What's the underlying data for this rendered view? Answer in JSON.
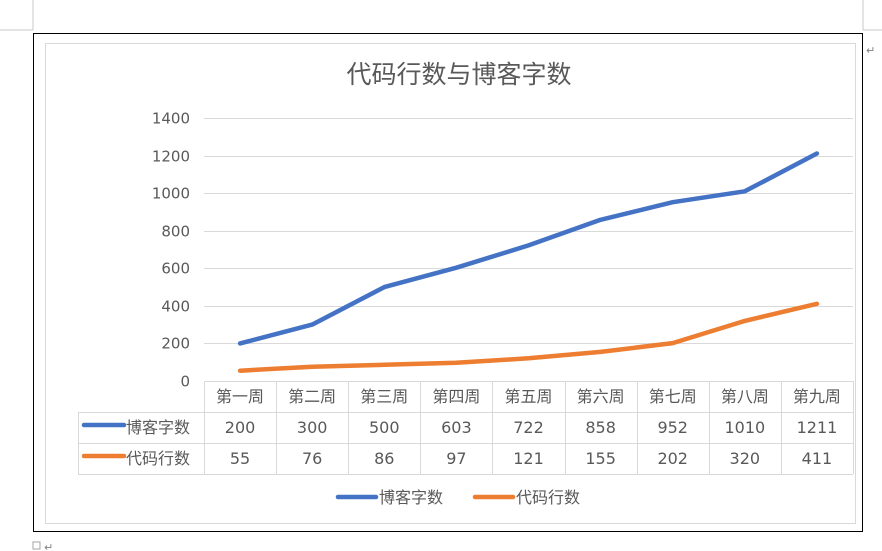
{
  "paragraph_marks": [
    "↵",
    "↵"
  ],
  "chart_data": {
    "type": "line",
    "title": "代码行数与博客字数",
    "categories": [
      "第一周",
      "第二周",
      "第三周",
      "第四周",
      "第五周",
      "第六周",
      "第七周",
      "第八周",
      "第九周"
    ],
    "series": [
      {
        "name": "博客字数",
        "color": "#4472c4",
        "values": [
          200,
          300,
          500,
          603,
          722,
          858,
          952,
          1010,
          1211
        ]
      },
      {
        "name": "代码行数",
        "color": "#ed7d31",
        "values": [
          55,
          76,
          86,
          97,
          121,
          155,
          202,
          320,
          411
        ]
      }
    ],
    "ylim": [
      0,
      1400
    ],
    "yticks": [
      0,
      200,
      400,
      600,
      800,
      1000,
      1200,
      1400
    ],
    "grid": true,
    "data_table": true,
    "legend_position": "bottom"
  }
}
